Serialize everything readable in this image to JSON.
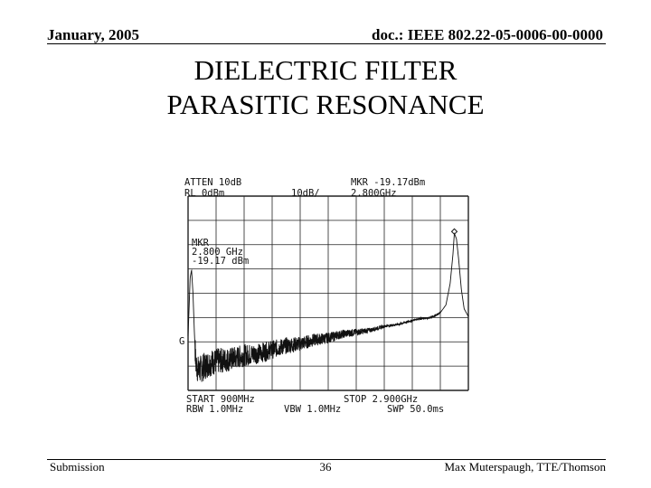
{
  "header": {
    "date": "January, 2005",
    "doc": "doc.: IEEE 802.22-05-0006-00-0000"
  },
  "title": {
    "line1": "DIELECTRIC FILTER",
    "line2": "PARASITIC RESONANCE"
  },
  "footer": {
    "left": "Submission",
    "page": "36",
    "right": "Max Muterspaugh, TTE/Thomson"
  },
  "chart_data": {
    "type": "line",
    "display": {
      "atten": "ATTEN 10dB",
      "ref_level": "RL 0dBm",
      "scale": "10dB/",
      "marker_top": "MKR -19.17dBm",
      "marker_top_freq": "2.800GHz",
      "mkr_label": "MKR",
      "mkr_freq": "2.800 GHz",
      "mkr_level": "-19.17 dBm",
      "g_label": "G",
      "start": "START 900MHz",
      "stop": "STOP 2.900GHz",
      "rbw": "RBW 1.0MHz",
      "vbw": "VBW 1.0MHz",
      "swp": "SWP 50.0ms"
    },
    "x_range_mhz": [
      900,
      2900
    ],
    "y_range_dbm": [
      -100,
      0
    ],
    "grid": true,
    "series": [
      {
        "x": [
          900,
          905,
          915,
          925,
          935,
          945,
          955,
          965,
          975,
          990,
          1010,
          1050,
          1100,
          1200,
          1300,
          1400,
          1500,
          1600,
          1700,
          1800,
          1900,
          2000,
          2100,
          2200,
          2300,
          2400,
          2500,
          2550,
          2600,
          2650,
          2700,
          2740,
          2770,
          2790,
          2800,
          2815,
          2830,
          2850,
          2870,
          2900
        ],
        "y": [
          -72,
          -62,
          -42,
          -38,
          -50,
          -70,
          -86,
          -88,
          -90,
          -89,
          -88,
          -86,
          -85,
          -84,
          -82,
          -81,
          -79,
          -77,
          -76,
          -74,
          -73,
          -71,
          -70,
          -69,
          -67,
          -66,
          -64,
          -63,
          -63,
          -62,
          -60,
          -56,
          -45,
          -30,
          -19.17,
          -22,
          -32,
          -48,
          -58,
          -62
        ]
      }
    ],
    "marker": {
      "x": 2800,
      "y": -19.17
    }
  }
}
